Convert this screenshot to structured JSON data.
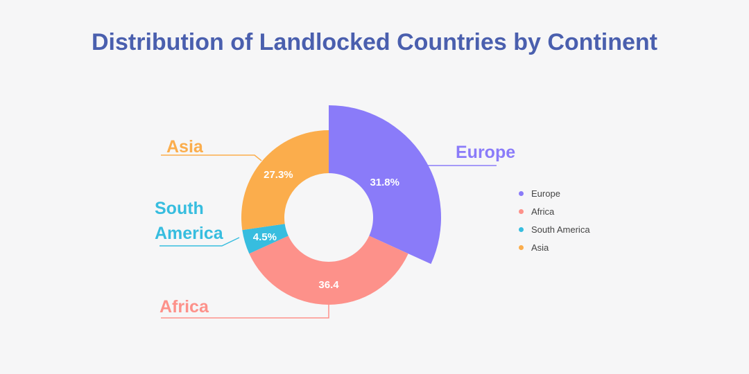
{
  "title": "Distribution of Landlocked Countries by Continent",
  "chart_data": {
    "type": "pie",
    "variant": "donut",
    "title": "Distribution of Landlocked Countries by Continent",
    "categories": [
      "Europe",
      "Africa",
      "South America",
      "Asia"
    ],
    "values": [
      31.8,
      36.4,
      4.5,
      27.3
    ],
    "value_labels": [
      "31.8%",
      "36.4",
      "4.5%",
      "27.3%"
    ],
    "colors": [
      "#8a7bf9",
      "#fd918a",
      "#37bddf",
      "#fbad4c"
    ],
    "outside_labels": [
      "Europe",
      "Africa",
      "South America",
      "Asia"
    ],
    "highlighted": "Europe",
    "legend_position": "right"
  }
}
